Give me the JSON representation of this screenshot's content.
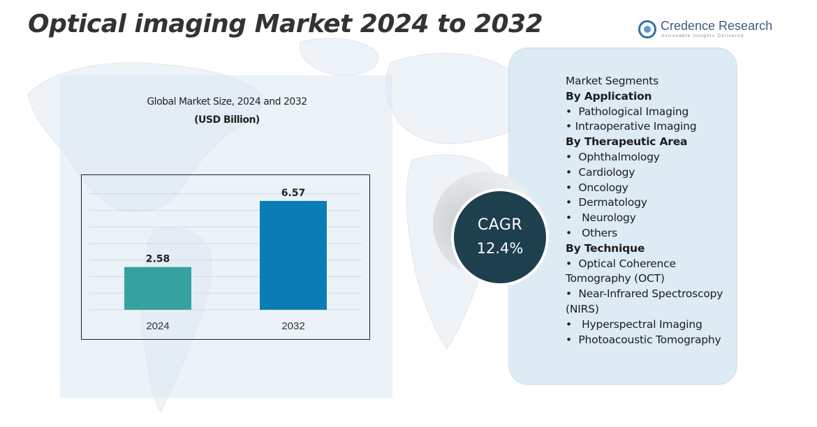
{
  "page": {
    "title": "Optical imaging Market 2024 to 2032"
  },
  "brand": {
    "name": "Credence Research",
    "tagline": "Actionable Insights Delivered",
    "color": "#2f6fa8"
  },
  "chart_data": {
    "type": "bar",
    "title": "Global Market Size, 2024 and 2032",
    "unit": "(USD Billion)",
    "categories": [
      "2024",
      "2032"
    ],
    "values": [
      2.58,
      6.57
    ],
    "value_labels": [
      "2.58",
      "6.57"
    ],
    "colors": [
      "#35a29f",
      "#0b7db6"
    ],
    "ylim": [
      0,
      8
    ],
    "grid": true,
    "legend": "none"
  },
  "cagr": {
    "label": "CAGR",
    "value": "12.4%"
  },
  "segments": {
    "heading": "Market Segments",
    "lines": [
      {
        "kind": "group",
        "text": "By Application"
      },
      {
        "kind": "item",
        "text": "•  Pathological Imaging"
      },
      {
        "kind": "item",
        "text": "• Intraoperative Imaging"
      },
      {
        "kind": "group",
        "text": "By Therapeutic Area"
      },
      {
        "kind": "item",
        "text": "•  Ophthalmology"
      },
      {
        "kind": "item",
        "text": "•  Cardiology"
      },
      {
        "kind": "item",
        "text": "•  Oncology"
      },
      {
        "kind": "item",
        "text": "•  Dermatology"
      },
      {
        "kind": "item",
        "text": "•   Neurology"
      },
      {
        "kind": "item",
        "text": "•   Others"
      },
      {
        "kind": "group",
        "text": "By Technique"
      },
      {
        "kind": "item",
        "text": "•  Optical Coherence Tomography (OCT)"
      },
      {
        "kind": "item",
        "text": "•  Near-Infrared Spectroscopy (NIRS)"
      },
      {
        "kind": "item",
        "text": "•   Hyperspectral Imaging"
      },
      {
        "kind": "item",
        "text": "•  Photoacoustic Tomography"
      }
    ]
  }
}
